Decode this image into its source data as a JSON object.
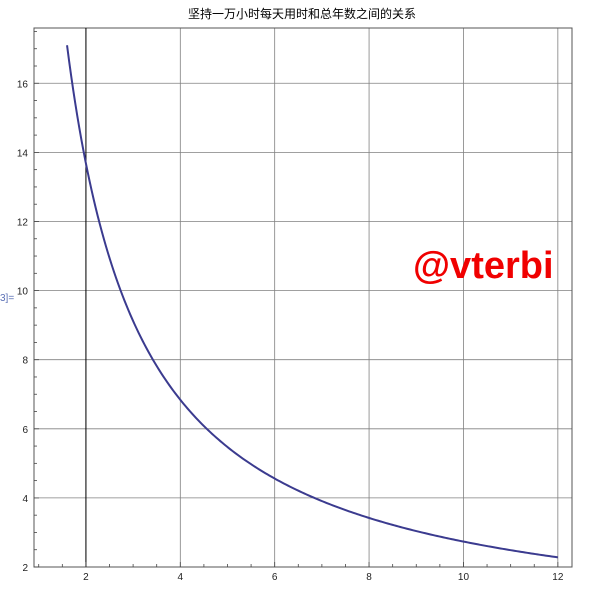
{
  "cell_label": "3]=",
  "watermark": "@vterbi",
  "colors": {
    "curve": "#3b3b8f",
    "grid": "#808080",
    "frame": "#555555",
    "watermark": "#f00000"
  },
  "chart_data": {
    "type": "line",
    "title": "坚持一万小时每天用时和总年数之间的关系",
    "xlabel": "",
    "ylabel": "",
    "xlim": [
      0.9,
      12.3
    ],
    "ylim": [
      2,
      17.6
    ],
    "xticks": [
      2,
      4,
      6,
      8,
      10,
      12
    ],
    "yticks": [
      2,
      4,
      6,
      8,
      10,
      12,
      14,
      16
    ],
    "grid": true,
    "function": "y = 27.4 / x",
    "series": [
      {
        "x": [
          1.6,
          1.75,
          2,
          2.25,
          2.5,
          3,
          3.5,
          4,
          4.5,
          5,
          6,
          7,
          8,
          9,
          10,
          11,
          12
        ],
        "values": [
          17.1,
          15.66,
          13.7,
          12.18,
          10.96,
          9.13,
          7.83,
          6.85,
          6.09,
          5.48,
          4.57,
          3.91,
          3.43,
          3.04,
          2.74,
          2.49,
          2.28
        ]
      }
    ]
  }
}
